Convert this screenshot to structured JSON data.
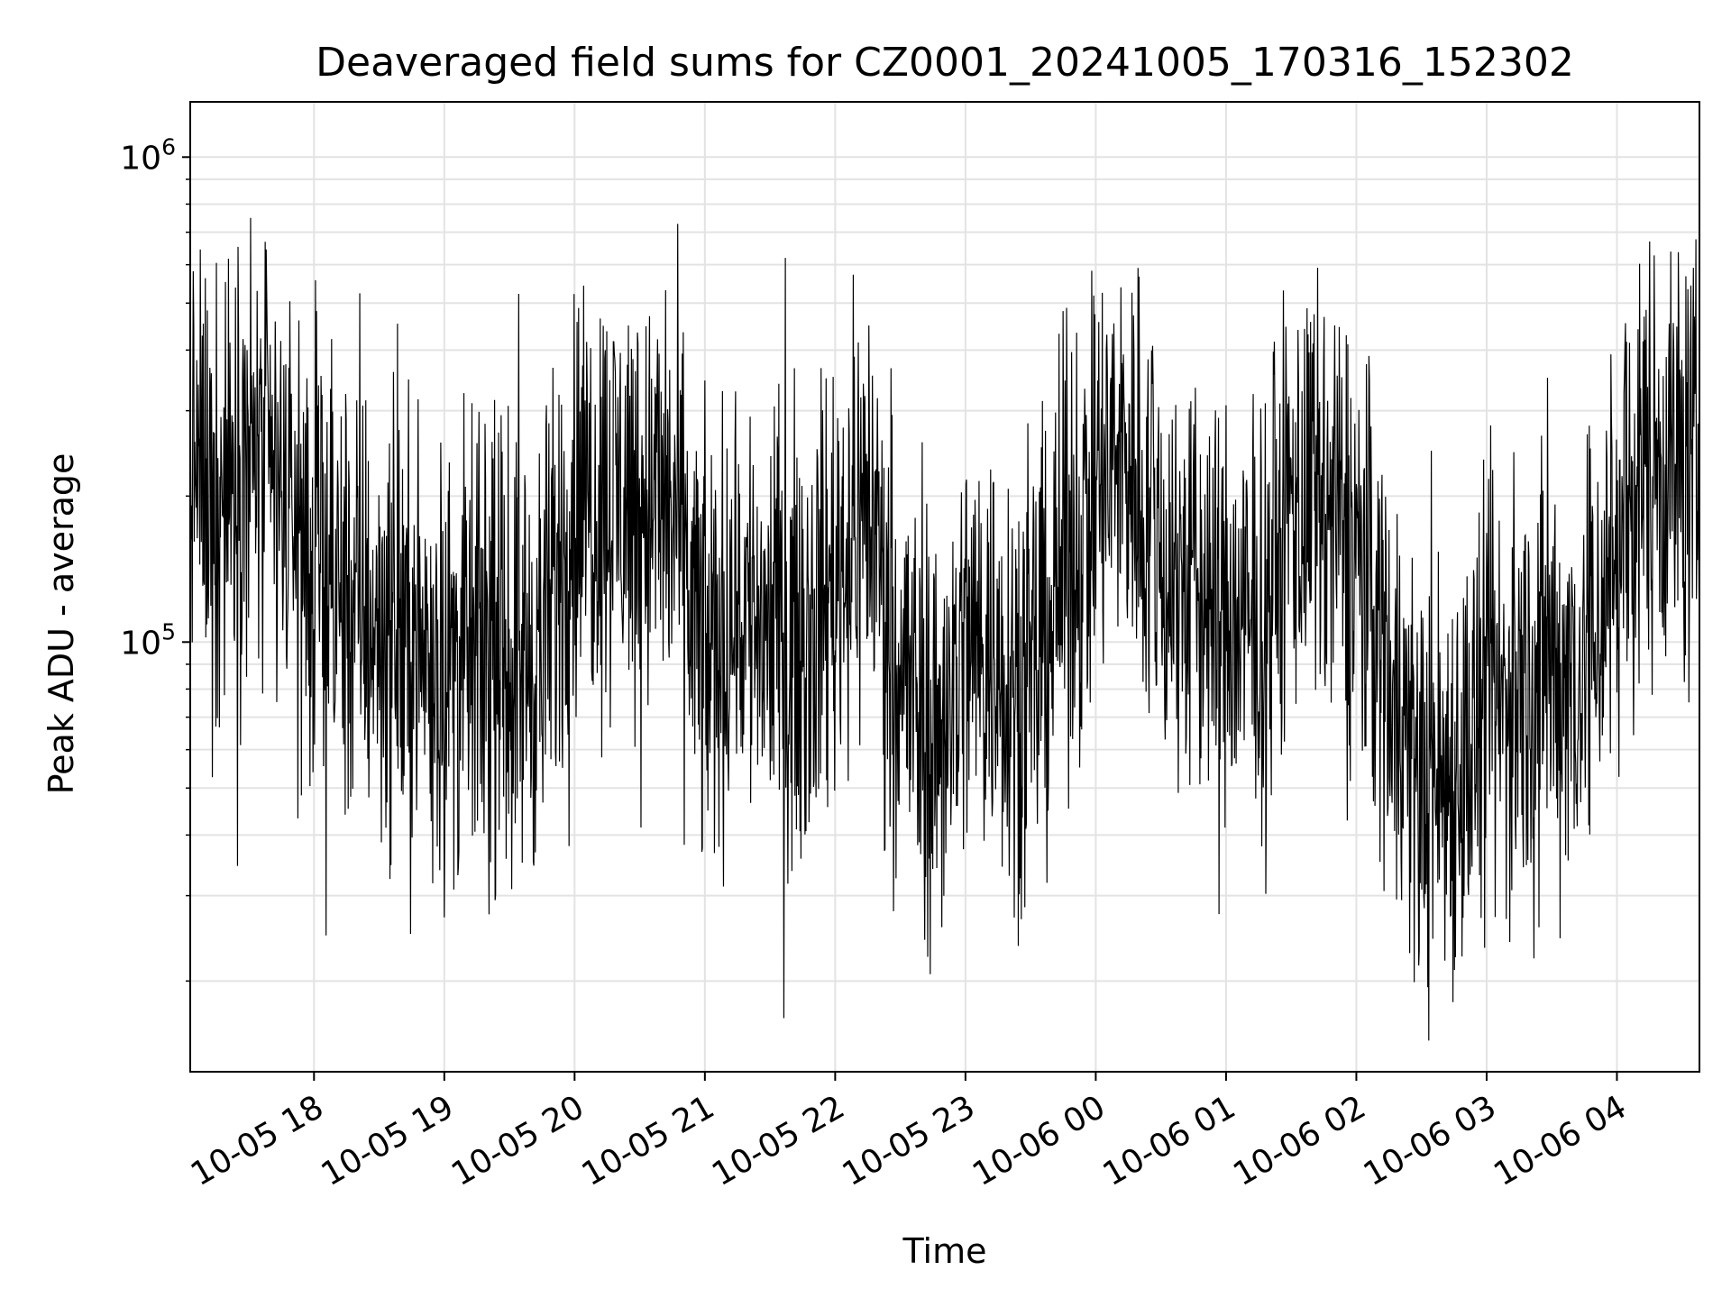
{
  "chart_data": {
    "type": "line",
    "title": "Deaveraged field sums for CZ0001_20241005_170316_152302",
    "xlabel": "Time",
    "ylabel": "Peak ADU - average",
    "yscale": "log",
    "ylim": [
      13000,
      1300000
    ],
    "xlim": [
      "2024-10-05 17:03",
      "2024-10-06 04:38"
    ],
    "x_ticks": [
      "10-05 18",
      "10-05 19",
      "10-05 20",
      "10-05 21",
      "10-05 22",
      "10-05 23",
      "10-06 00",
      "10-06 01",
      "10-06 02",
      "10-06 03",
      "10-06 04"
    ],
    "y_ticks": [
      {
        "value": 100000,
        "label": "10^5"
      },
      {
        "value": 1000000,
        "label": "10^6"
      }
    ],
    "grid": true,
    "line_color": "#000000",
    "series": [
      {
        "x": [
          "2024-10-05 17:03",
          "2024-10-05 17:15",
          "2024-10-05 17:30",
          "2024-10-05 17:45",
          "2024-10-05 18:00",
          "2024-10-05 18:15",
          "2024-10-05 18:30",
          "2024-10-05 18:45",
          "2024-10-05 19:00",
          "2024-10-05 19:15",
          "2024-10-05 19:30",
          "2024-10-05 19:45",
          "2024-10-05 20:00",
          "2024-10-05 20:15",
          "2024-10-05 20:30",
          "2024-10-05 20:45",
          "2024-10-05 21:00",
          "2024-10-05 21:15",
          "2024-10-05 21:30",
          "2024-10-05 21:45",
          "2024-10-05 22:00",
          "2024-10-05 22:15",
          "2024-10-05 22:30",
          "2024-10-05 22:45",
          "2024-10-05 23:00",
          "2024-10-05 23:15",
          "2024-10-05 23:30",
          "2024-10-05 23:45",
          "2024-10-06 00:00",
          "2024-10-06 00:15",
          "2024-10-06 00:30",
          "2024-10-06 00:45",
          "2024-10-06 01:00",
          "2024-10-06 01:15",
          "2024-10-06 01:30",
          "2024-10-06 01:45",
          "2024-10-06 02:00",
          "2024-10-06 02:15",
          "2024-10-06 02:30",
          "2024-10-06 02:45",
          "2024-10-06 03:00",
          "2024-10-06 03:15",
          "2024-10-06 03:30",
          "2024-10-06 03:45",
          "2024-10-06 04:00",
          "2024-10-06 04:15",
          "2024-10-06 04:38"
        ],
        "y": [
          240000,
          200000,
          250000,
          200000,
          140000,
          120000,
          110000,
          100000,
          90000,
          95000,
          90000,
          95000,
          200000,
          200000,
          200000,
          190000,
          90000,
          120000,
          110000,
          100000,
          140000,
          200000,
          90000,
          60000,
          100000,
          95000,
          80000,
          140000,
          200000,
          250000,
          150000,
          130000,
          110000,
          100000,
          200000,
          180000,
          160000,
          90000,
          50000,
          55000,
          70000,
          80000,
          90000,
          85000,
          160000,
          250000,
          220000
        ]
      }
    ]
  }
}
